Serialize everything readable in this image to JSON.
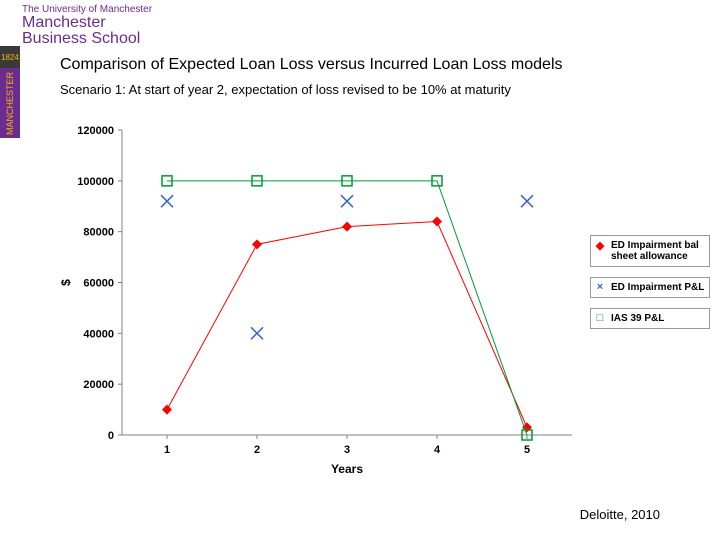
{
  "logo": {
    "line1": "The University of Manchester",
    "line2a": "Manchester",
    "line2b": "Business School",
    "badge_text": "MANCHESTER",
    "badge_text_color": "#f5b800",
    "badge_bg": "#6b2c91",
    "year": "1824"
  },
  "title": "Comparison of Expected Loan Loss versus Incurred Loan Loss models",
  "subtitle": "Scenario 1: At start of year 2, expectation of loss revised to be 10% at maturity",
  "source": "Deloitte, 2010",
  "chart": {
    "type": "line",
    "background_color": "#ffffff",
    "plot_area_bg": "#ffffff",
    "grid_color": "#c0c0c0",
    "axis_color": "#808080",
    "xlabel": "Years",
    "ylabel": "$",
    "label_fontsize": 12,
    "tick_fontsize": 11,
    "x_categories": [
      "1",
      "2",
      "3",
      "4",
      "5"
    ],
    "ylim": [
      0,
      120000
    ],
    "ytick_step": 20000,
    "yticks": [
      0,
      20000,
      40000,
      60000,
      80000,
      100000,
      120000
    ],
    "series": [
      {
        "name": "ED Impairment bal sheet allowance",
        "color": "#ff0000",
        "marker": "diamond",
        "marker_size": 5,
        "line_width": 1,
        "values": [
          10000,
          75000,
          82000,
          84000,
          3000
        ]
      },
      {
        "name": "ED Impairment P&L",
        "color": "#3366cc",
        "marker": "x",
        "marker_size": 6,
        "line_width": 0,
        "values": [
          92000,
          40000,
          92000,
          null,
          92000
        ]
      },
      {
        "name": "IAS 39 P&L",
        "color": "#009933",
        "marker": "square",
        "marker_size": 5,
        "line_width": 1,
        "values": [
          100000,
          100000,
          100000,
          100000,
          0
        ]
      }
    ],
    "legend": {
      "position": "right",
      "border_color": "#999999",
      "font_size": 10
    }
  }
}
